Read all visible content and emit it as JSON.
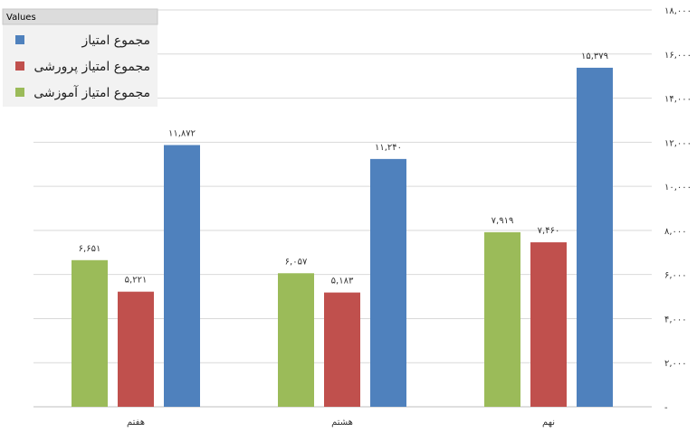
{
  "chart_data": {
    "type": "bar",
    "categories": [
      "هفتم",
      "هشتم",
      "نهم"
    ],
    "series": [
      {
        "name": "مجموع امتیاز آموزشی",
        "color": "#9BBB59",
        "values": [
          6651,
          6057,
          7919
        ],
        "labels": [
          "۶,۶۵۱",
          "۶,۰۵۷",
          "۷,۹۱۹"
        ]
      },
      {
        "name": "مجموع امتیاز پرورشی",
        "color": "#C0504D",
        "values": [
          5221,
          5183,
          7460
        ],
        "labels": [
          "۵,۲۲۱",
          "۵,۱۸۳",
          "۷,۴۶۰"
        ]
      },
      {
        "name": "مجموع امتیاز",
        "color": "#4F81BD",
        "values": [
          11872,
          11240,
          15379
        ],
        "labels": [
          "۱۱,۸۷۲",
          "۱۱,۲۴۰",
          "۱۵,۳۷۹"
        ]
      }
    ],
    "ylim": [
      0,
      18000
    ],
    "yticks": [
      0,
      2000,
      4000,
      6000,
      8000,
      10000,
      12000,
      14000,
      16000,
      18000
    ],
    "ytick_labels": [
      "-",
      "۲,۰۰۰",
      "۴,۰۰۰",
      "۶,۰۰۰",
      "۸,۰۰۰",
      "۱۰,۰۰۰",
      "۱۲,۰۰۰",
      "۱۴,۰۰۰",
      "۱۶,۰۰۰",
      "۱۸,۰۰۰"
    ],
    "y_axis_side": "right",
    "grid": true,
    "legend": {
      "title": "Values",
      "placement": "top-left",
      "entries": [
        "مجموع امتیاز",
        "مجموع امتیاز پرورشی",
        "مجموع امتیاز آموزشی"
      ]
    }
  }
}
